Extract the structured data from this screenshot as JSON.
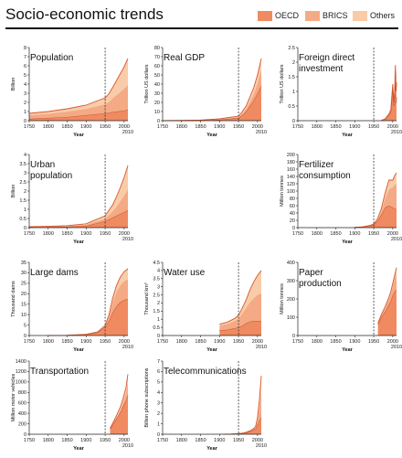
{
  "title": "Socio-economic trends",
  "legend": [
    {
      "name": "OECD",
      "color": "#f08a60"
    },
    {
      "name": "BRICS",
      "color": "#f4aa84"
    },
    {
      "name": "Others",
      "color": "#f8cca8"
    }
  ],
  "colors": {
    "total_line": "#d9572c",
    "line_oecd": "#b8452a",
    "dashed_1950": "#333333"
  },
  "chart_data": [
    {
      "type": "area",
      "title": "Population",
      "title_lines": [
        "Population"
      ],
      "ylabel": "Billion",
      "xlabel": "Year",
      "ylim": [
        0,
        8
      ],
      "yticks": [
        0,
        1,
        2,
        3,
        4,
        5,
        6,
        7,
        8
      ],
      "xlim": [
        1750,
        2010
      ],
      "xticks": [
        1750,
        1800,
        1850,
        1900,
        1950,
        2000
      ],
      "xtick_extra": "2010",
      "marker_1950": true,
      "grid": false,
      "stacked": true,
      "x": [
        1750,
        1800,
        1850,
        1900,
        1950,
        1960,
        1970,
        1980,
        1990,
        2000,
        2010
      ],
      "series": [
        {
          "name": "OECD",
          "values": [
            0.2,
            0.3,
            0.4,
            0.6,
            0.8,
            0.85,
            0.95,
            1.0,
            1.05,
            1.1,
            1.2
          ]
        },
        {
          "name": "BRICS",
          "values": [
            0.4,
            0.45,
            0.6,
            0.7,
            1.0,
            1.2,
            1.5,
            1.8,
            2.1,
            2.4,
            2.7
          ]
        },
        {
          "name": "Others",
          "values": [
            0.2,
            0.25,
            0.3,
            0.4,
            0.7,
            0.9,
            1.2,
            1.6,
            2.0,
            2.4,
            2.9
          ]
        }
      ]
    },
    {
      "type": "area",
      "title": "Real GDP",
      "title_lines": [
        "Real GDP"
      ],
      "ylabel": "Trillion US dollars",
      "xlabel": "Year",
      "ylim": [
        0,
        80
      ],
      "yticks": [
        0,
        10,
        20,
        30,
        40,
        50,
        60,
        70,
        80
      ],
      "xlim": [
        1750,
        2010
      ],
      "xticks": [
        1750,
        1800,
        1850,
        1900,
        1950,
        2000
      ],
      "xtick_extra": "2010",
      "marker_1950": true,
      "grid": false,
      "stacked": true,
      "x": [
        1750,
        1800,
        1850,
        1900,
        1950,
        1960,
        1970,
        1980,
        1990,
        2000,
        2010
      ],
      "series": [
        {
          "name": "OECD",
          "values": [
            0,
            0.1,
            0.3,
            1,
            3,
            6,
            10,
            16,
            22,
            30,
            38
          ]
        },
        {
          "name": "BRICS",
          "values": [
            0,
            0.1,
            0.2,
            0.5,
            1,
            2,
            3,
            5,
            7,
            11,
            18
          ]
        },
        {
          "name": "Others",
          "values": [
            0,
            0.1,
            0.2,
            0.5,
            1,
            2,
            3,
            5,
            7,
            9,
            12
          ]
        }
      ]
    },
    {
      "type": "area",
      "title": "Foreign direct investment",
      "title_lines": [
        "Foreign direct",
        "investment"
      ],
      "ylabel": "Trillion US dollars",
      "xlabel": "Year",
      "ylim": [
        0,
        2.5
      ],
      "yticks": [
        0,
        0.5,
        1,
        1.5,
        2,
        2.5
      ],
      "xlim": [
        1750,
        2010
      ],
      "xticks": [
        1750,
        1800,
        1850,
        1900,
        1950,
        2000
      ],
      "xtick_extra": "2010",
      "marker_1950": true,
      "grid": false,
      "stacked": true,
      "x": [
        1970,
        1980,
        1990,
        1995,
        2000,
        2003,
        2005,
        2007,
        2008,
        2009,
        2010
      ],
      "series": [
        {
          "name": "OECD",
          "values": [
            0.01,
            0.05,
            0.2,
            0.3,
            1.1,
            0.5,
            0.8,
            1.4,
            1.0,
            0.6,
            0.8
          ]
        },
        {
          "name": "BRICS",
          "values": [
            0,
            0,
            0.01,
            0.03,
            0.05,
            0.05,
            0.1,
            0.2,
            0.25,
            0.2,
            0.25
          ]
        },
        {
          "name": "Others",
          "values": [
            0,
            0.01,
            0.02,
            0.05,
            0.1,
            0.08,
            0.1,
            0.3,
            0.3,
            0.2,
            0.25
          ]
        }
      ]
    },
    {
      "type": "area",
      "title": "Urban population",
      "title_lines": [
        "Urban",
        "population"
      ],
      "ylabel": "Billion",
      "xlabel": "Year",
      "ylim": [
        0,
        4
      ],
      "yticks": [
        0,
        0.5,
        1,
        1.5,
        2,
        2.5,
        3,
        3.5,
        4
      ],
      "xlim": [
        1750,
        2010
      ],
      "xticks": [
        1750,
        1800,
        1850,
        1900,
        1950,
        2000
      ],
      "xtick_extra": "2010",
      "marker_1950": true,
      "grid": false,
      "stacked": true,
      "x": [
        1750,
        1800,
        1850,
        1900,
        1950,
        1960,
        1970,
        1980,
        1990,
        2000,
        2010
      ],
      "series": [
        {
          "name": "OECD",
          "values": [
            0.02,
            0.03,
            0.05,
            0.1,
            0.35,
            0.45,
            0.55,
            0.65,
            0.75,
            0.85,
            0.95
          ]
        },
        {
          "name": "BRICS",
          "values": [
            0.02,
            0.03,
            0.04,
            0.06,
            0.15,
            0.25,
            0.35,
            0.5,
            0.7,
            0.9,
            1.15
          ]
        },
        {
          "name": "Others",
          "values": [
            0.01,
            0.01,
            0.02,
            0.05,
            0.15,
            0.25,
            0.35,
            0.55,
            0.75,
            1.0,
            1.3
          ]
        }
      ]
    },
    {
      "type": "area",
      "title": "Fertilizer consumption",
      "title_lines": [
        "Fertilizer",
        "consumption"
      ],
      "ylabel": "Million tonnes",
      "xlabel": "Year",
      "ylim": [
        0,
        200
      ],
      "yticks": [
        0,
        20,
        40,
        60,
        80,
        100,
        120,
        140,
        160,
        180,
        200
      ],
      "xlim": [
        1750,
        2010
      ],
      "xticks": [
        1750,
        1800,
        1850,
        1900,
        1950,
        2000
      ],
      "xtick_extra": "2010",
      "marker_1950": true,
      "grid": false,
      "stacked": true,
      "x": [
        1900,
        1920,
        1940,
        1950,
        1960,
        1970,
        1980,
        1990,
        2000,
        2005,
        2010
      ],
      "series": [
        {
          "name": "OECD",
          "values": [
            1,
            2,
            5,
            8,
            18,
            35,
            55,
            60,
            55,
            52,
            50
          ]
        },
        {
          "name": "BRICS",
          "values": [
            0,
            0,
            0.5,
            1,
            3,
            10,
            25,
            45,
            55,
            65,
            70
          ]
        },
        {
          "name": "Others",
          "values": [
            0,
            0,
            0.5,
            1,
            3,
            7,
            15,
            25,
            20,
            25,
            30
          ]
        }
      ]
    },
    {
      "type": "area",
      "title": "Large dams",
      "title_lines": [
        "Large dams"
      ],
      "ylabel": "Thousand dams",
      "xlabel": "Year",
      "ylim": [
        0,
        35
      ],
      "yticks": [
        0,
        5,
        10,
        15,
        20,
        25,
        30,
        35
      ],
      "xlim": [
        1750,
        2010
      ],
      "xticks": [
        1750,
        1800,
        1850,
        1900,
        1950,
        2000
      ],
      "xtick_extra": "2010",
      "marker_1950": true,
      "grid": false,
      "stacked": true,
      "x": [
        1800,
        1850,
        1900,
        1930,
        1950,
        1960,
        1970,
        1980,
        1990,
        2000,
        2010
      ],
      "series": [
        {
          "name": "OECD",
          "values": [
            0,
            0.1,
            0.5,
            1.5,
            4,
            7,
            11,
            14,
            16,
            17,
            17.5
          ]
        },
        {
          "name": "BRICS",
          "values": [
            0,
            0,
            0,
            0.1,
            0.5,
            2,
            5,
            7,
            8,
            9,
            9.5
          ]
        },
        {
          "name": "Others",
          "values": [
            0,
            0,
            0.05,
            0.1,
            0.3,
            0.8,
            2,
            3,
            4,
            4.5,
            5
          ]
        }
      ]
    },
    {
      "type": "area",
      "title": "Water use",
      "title_lines": [
        "Water use"
      ],
      "ylabel": "Thousand km³",
      "xlabel": "Year",
      "ylim": [
        0,
        4.5
      ],
      "yticks": [
        0,
        0.5,
        1,
        1.5,
        2,
        2.5,
        3,
        3.5,
        4,
        4.5
      ],
      "xlim": [
        1750,
        2010
      ],
      "xticks": [
        1750,
        1800,
        1850,
        1900,
        1950,
        2000
      ],
      "xtick_extra": "2010",
      "marker_1950": true,
      "grid": false,
      "stacked": true,
      "x": [
        1900,
        1920,
        1940,
        1950,
        1960,
        1970,
        1980,
        1990,
        2000,
        2005,
        2010
      ],
      "series": [
        {
          "name": "OECD",
          "values": [
            0.3,
            0.35,
            0.45,
            0.5,
            0.6,
            0.75,
            0.85,
            0.9,
            0.9,
            0.9,
            0.9
          ]
        },
        {
          "name": "BRICS",
          "values": [
            0.3,
            0.35,
            0.45,
            0.55,
            0.75,
            0.95,
            1.2,
            1.4,
            1.6,
            1.65,
            1.7
          ]
        },
        {
          "name": "Others",
          "values": [
            0.1,
            0.12,
            0.15,
            0.2,
            0.35,
            0.5,
            0.75,
            1.0,
            1.2,
            1.3,
            1.4
          ]
        }
      ]
    },
    {
      "type": "area",
      "title": "Paper production",
      "title_lines": [
        "Paper",
        "production"
      ],
      "ylabel": "Million tonnes",
      "xlabel": "Year",
      "ylim": [
        0,
        400
      ],
      "yticks": [
        0,
        100,
        200,
        300,
        400
      ],
      "xlim": [
        1750,
        2010
      ],
      "xticks": [
        1750,
        1800,
        1850,
        1900,
        1950,
        2000
      ],
      "xtick_extra": "2010",
      "marker_1950": true,
      "grid": false,
      "stacked": true,
      "x": [
        1961,
        1970,
        1980,
        1990,
        1995,
        2000,
        2005,
        2010
      ],
      "series": [
        {
          "name": "OECD",
          "values": [
            60,
            100,
            130,
            170,
            190,
            220,
            240,
            250
          ]
        },
        {
          "name": "BRICS",
          "values": [
            5,
            10,
            20,
            30,
            40,
            50,
            70,
            100
          ]
        },
        {
          "name": "Others",
          "values": [
            3,
            5,
            8,
            10,
            12,
            15,
            18,
            22
          ]
        }
      ]
    },
    {
      "type": "area",
      "title": "Transportation",
      "title_lines": [
        "Transportation"
      ],
      "ylabel": "Million motor vehicles",
      "xlabel": "Year",
      "ylim": [
        0,
        1400
      ],
      "yticks": [
        0,
        200,
        400,
        600,
        800,
        1000,
        1200,
        1400
      ],
      "xlim": [
        1750,
        2010
      ],
      "xticks": [
        1750,
        1800,
        1850,
        1900,
        1950,
        2000
      ],
      "xtick_extra": "2010",
      "marker_1950": true,
      "grid": false,
      "stacked": true,
      "x": [
        1963,
        1970,
        1980,
        1990,
        1995,
        2000,
        2005,
        2010
      ],
      "series": [
        {
          "name": "OECD",
          "values": [
            100,
            180,
            300,
            420,
            500,
            580,
            650,
            750
          ]
        },
        {
          "name": "BRICS",
          "values": [
            5,
            10,
            20,
            40,
            60,
            90,
            140,
            250
          ]
        },
        {
          "name": "Others",
          "values": [
            10,
            20,
            40,
            60,
            70,
            90,
            110,
            150
          ]
        }
      ]
    },
    {
      "type": "area",
      "title": "Telecommunications",
      "title_lines": [
        "Telecommunications"
      ],
      "ylabel": "Billion phone subscriptions",
      "xlabel": "Year",
      "ylim": [
        0,
        7
      ],
      "yticks": [
        0,
        1,
        2,
        3,
        4,
        5,
        6,
        7
      ],
      "xlim": [
        1750,
        2010
      ],
      "xticks": [
        1750,
        1800,
        1850,
        1900,
        1950,
        2000
      ],
      "xtick_extra": "2010",
      "marker_1950": true,
      "grid": false,
      "stacked": true,
      "x": [
        1910,
        1930,
        1950,
        1960,
        1970,
        1980,
        1990,
        1995,
        2000,
        2005,
        2010
      ],
      "series": [
        {
          "name": "OECD",
          "values": [
            0.005,
            0.01,
            0.05,
            0.08,
            0.15,
            0.25,
            0.45,
            0.55,
            0.9,
            1.3,
            1.6
          ]
        },
        {
          "name": "BRICS",
          "values": [
            0,
            0,
            0.005,
            0.01,
            0.02,
            0.04,
            0.05,
            0.1,
            0.4,
            1.2,
            2.5
          ]
        },
        {
          "name": "Others",
          "values": [
            0,
            0,
            0.005,
            0.01,
            0.02,
            0.03,
            0.05,
            0.1,
            0.3,
            0.8,
            1.5
          ]
        }
      ]
    }
  ]
}
